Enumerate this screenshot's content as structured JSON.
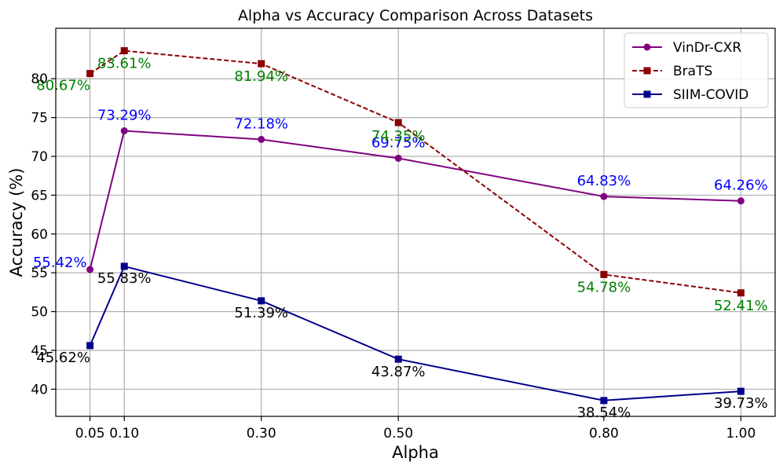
{
  "chart_data": {
    "type": "line",
    "title": "Alpha vs Accuracy Comparison Across Datasets",
    "xlabel": "Alpha",
    "ylabel": "Accuracy (%)",
    "x": [
      0.05,
      0.1,
      0.3,
      0.5,
      0.8,
      1.0
    ],
    "x_tick_labels": [
      "0.05",
      "0.10",
      "0.30",
      "0.50",
      "0.80",
      "1.00"
    ],
    "xlim": [
      0.0,
      1.05
    ],
    "ylim": [
      36.5,
      86.5
    ],
    "y_ticks": [
      40,
      45,
      50,
      55,
      60,
      65,
      70,
      75,
      80
    ],
    "grid": true,
    "legend_position": "top-right",
    "series": [
      {
        "name": "VinDr-CXR",
        "values": [
          55.42,
          73.29,
          72.18,
          69.75,
          64.83,
          64.26
        ],
        "labels": [
          "55.42%",
          "73.29%",
          "72.18%",
          "69.75%",
          "64.83%",
          "64.26%"
        ],
        "color": "#800080",
        "label_color": "#0000ff",
        "marker": "circle",
        "line_style": "solid"
      },
      {
        "name": "BraTS",
        "values": [
          80.67,
          83.61,
          81.94,
          74.35,
          54.78,
          52.41
        ],
        "labels": [
          "80.67%",
          "83.61%",
          "81.94%",
          "74.35%",
          "54.78%",
          "52.41%"
        ],
        "color": "#8b0000",
        "label_color": "#008000",
        "marker": "square",
        "line_style": "dashed"
      },
      {
        "name": "SIIM-COVID",
        "values": [
          45.62,
          55.83,
          51.39,
          43.87,
          38.54,
          39.73
        ],
        "labels": [
          "45.62%",
          "55.83%",
          "51.39%",
          "43.87%",
          "38.54%",
          "39.73%"
        ],
        "color": "#00008b",
        "label_color": "#000000",
        "marker": "square",
        "line_style": "solid"
      }
    ]
  }
}
